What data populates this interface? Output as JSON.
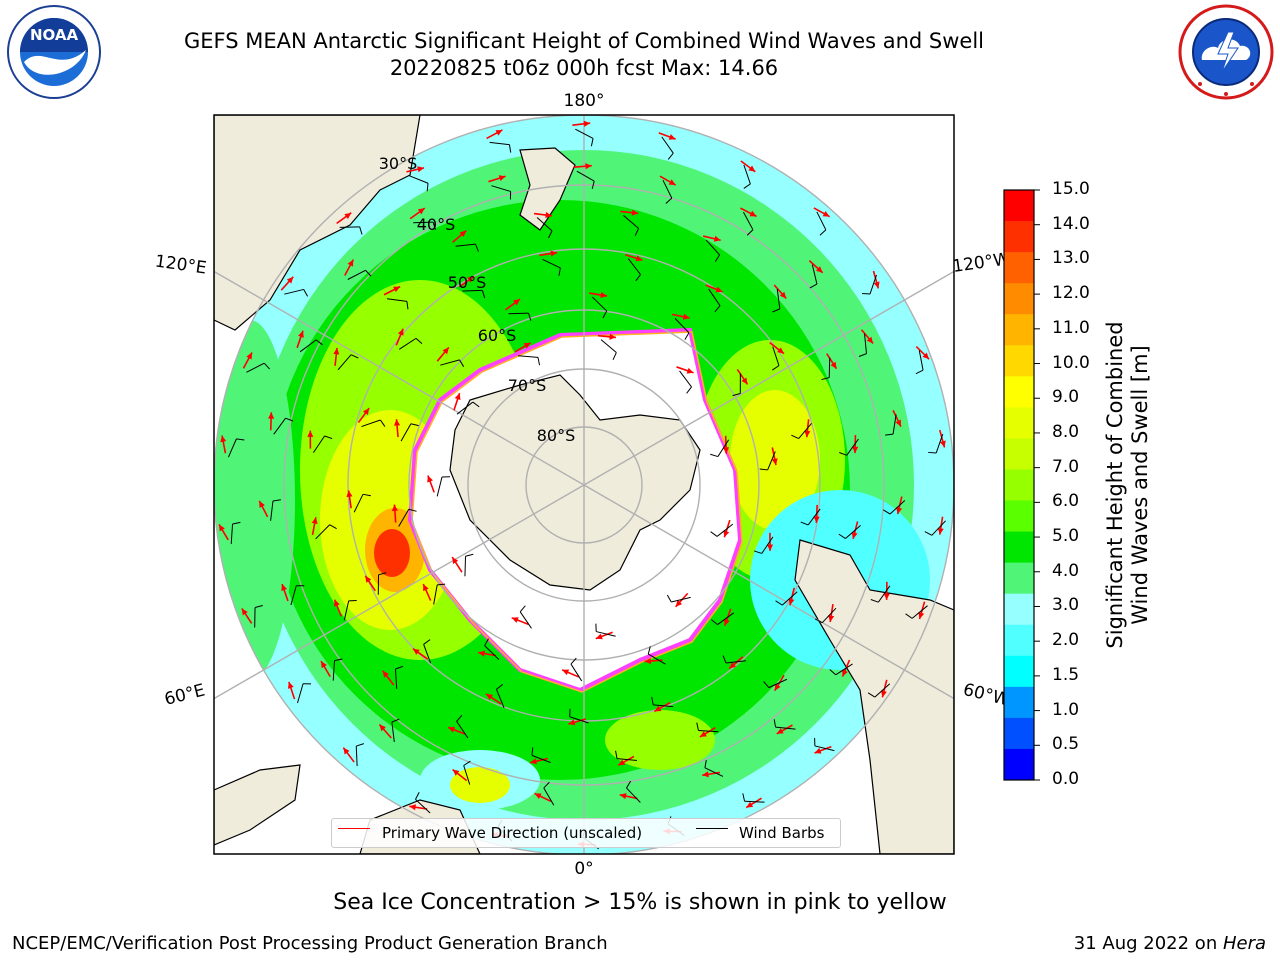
{
  "title": {
    "line1": "GEFS MEAN Antarctic Significant Height of Combined Wind Waves and Swell",
    "line2": "20220825 t06z 000h fcst   Max: 14.66"
  },
  "logos": {
    "left": {
      "icon": "noaa-logo",
      "text": "NOAA",
      "ring_text": "NATIONAL OCEANIC AND ATMOSPHERIC ADMINISTRATION · U.S. DEPARTMENT OF COMMERCE"
    },
    "right": {
      "icon": "national-weather-service-logo",
      "ring_text": "NATIONAL WEATHER SERVICE"
    }
  },
  "map": {
    "projection": "south-polar-stereographic",
    "longitude_labels": {
      "top": "180°",
      "bottom": "0°",
      "left_upper": "120°E",
      "left_lower": "60°E",
      "right_upper": "120°W",
      "right_lower": "60°W"
    },
    "latitude_labels": [
      "30°S",
      "40°S",
      "50°S",
      "60°S",
      "70°S",
      "80°S"
    ],
    "colors": {
      "land": "#efecdc",
      "coast": "#000000",
      "grid": "#b0b0b0",
      "ice_edge": "#ff40ff",
      "ice_inner": "#ffb020",
      "wave_arrow": "#ff0000",
      "wind_barb": "#000000"
    }
  },
  "colorbar": {
    "label_line1": "Significant Height of Combined",
    "label_line2": "Wind Waves and Swell [m]",
    "ticks": [
      "15.0",
      "14.0",
      "13.0",
      "12.0",
      "11.0",
      "10.0",
      "9.0",
      "8.0",
      "7.0",
      "6.0",
      "5.0",
      "4.0",
      "3.0",
      "2.0",
      "1.5",
      "1.0",
      "0.5",
      "0.0"
    ],
    "colors_top_to_bottom": [
      "#ff0000",
      "#ff3000",
      "#ff6000",
      "#ff8c00",
      "#ffb400",
      "#ffd800",
      "#ffff00",
      "#e6ff00",
      "#c8ff00",
      "#96ff00",
      "#5aff00",
      "#00e600",
      "#50f578",
      "#96ffff",
      "#50ffff",
      "#00ffff",
      "#0096ff",
      "#0050ff",
      "#0000ff"
    ]
  },
  "legend": {
    "wave_label": "Primary Wave Direction (unscaled)",
    "barb_label": "Wind Barbs"
  },
  "caption": "Sea Ice Concentration > 15% is shown in pink to yellow",
  "footer": {
    "left": "NCEP/EMC/Verification Post Processing Product Generation Branch",
    "right_prefix": "31 Aug 2022 on ",
    "right_host": "Hera"
  }
}
